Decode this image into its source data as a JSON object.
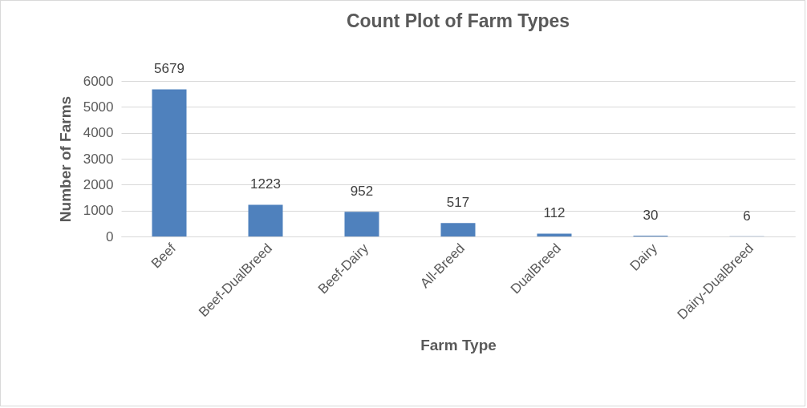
{
  "chart_data": {
    "type": "bar",
    "title": "Count Plot of Farm Types",
    "xlabel": "Farm Type",
    "ylabel": "Number of Farms",
    "categories": [
      "Beef",
      "Beef-DualBreed",
      "Beef-Dairy",
      "All-Breed",
      "DualBreed",
      "Dairy",
      "Dairy-DualBreed"
    ],
    "values": [
      5679,
      1223,
      952,
      517,
      112,
      30,
      6
    ],
    "color": "#4f81bd",
    "ylim": [
      0,
      6000
    ],
    "yticks": [
      0,
      1000,
      2000,
      3000,
      4000,
      5000,
      6000
    ],
    "grid": "y",
    "data_labels": true
  }
}
